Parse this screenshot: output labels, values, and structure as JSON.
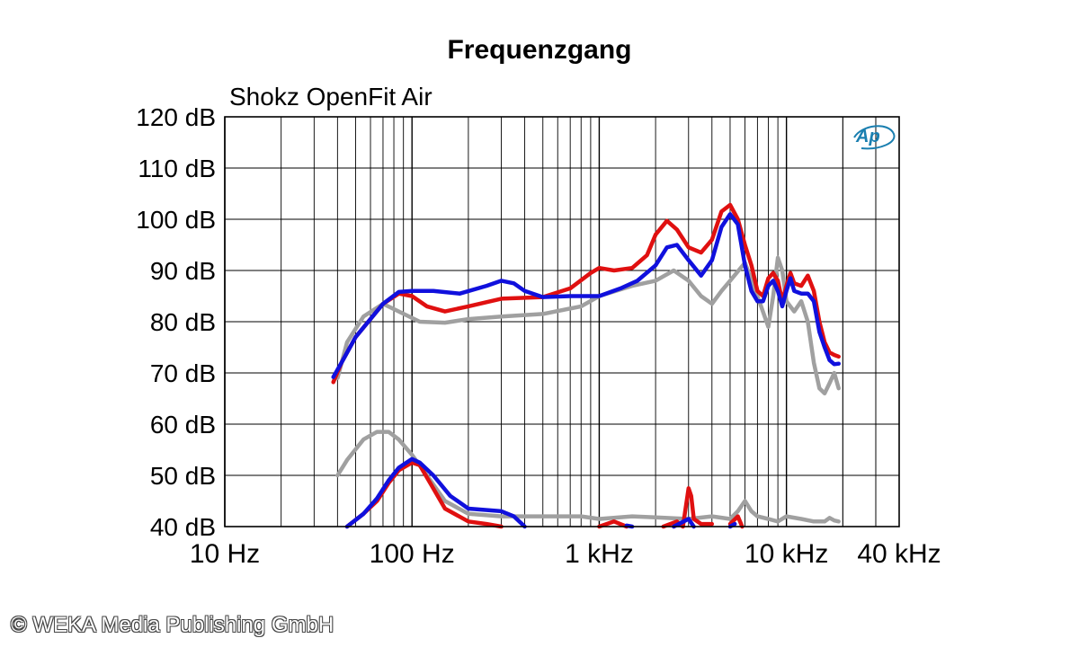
{
  "chart_data": {
    "type": "line",
    "title": "Frequenzgang",
    "subtitle": "Shokz OpenFit Air",
    "x_scale": "log",
    "xlim_hz": [
      10,
      40000
    ],
    "ylim": [
      40,
      120
    ],
    "y_ticks": [
      "120 dB",
      "110 dB",
      "100 dB",
      "90 dB",
      "80 dB",
      "70 dB",
      "60 dB",
      "50 dB",
      "40 dB"
    ],
    "x_ticks": [
      {
        "value": 10,
        "label": "10 Hz"
      },
      {
        "value": 100,
        "label": "100 Hz"
      },
      {
        "value": 1000,
        "label": "1 kHz"
      },
      {
        "value": 10000,
        "label": "10 kHz"
      },
      {
        "value": 40000,
        "label": "40 kHz"
      }
    ],
    "grid": true,
    "logo": "Ap",
    "series": [
      {
        "color": "#a0a0a0",
        "points": [
          [
            40,
            69
          ],
          [
            45,
            76
          ],
          [
            55,
            81
          ],
          [
            70,
            83.5
          ],
          [
            85,
            82
          ],
          [
            110,
            80
          ],
          [
            150,
            79.8
          ],
          [
            200,
            80.5
          ],
          [
            300,
            81
          ],
          [
            500,
            81.5
          ],
          [
            800,
            83
          ],
          [
            1000,
            85
          ],
          [
            1500,
            87
          ],
          [
            2000,
            88
          ],
          [
            2500,
            90
          ],
          [
            3000,
            88
          ],
          [
            3500,
            85
          ],
          [
            4000,
            83.5
          ],
          [
            4500,
            86
          ],
          [
            5000,
            88
          ],
          [
            6000,
            91.5
          ],
          [
            7000,
            85
          ],
          [
            8000,
            79
          ],
          [
            8500,
            85
          ],
          [
            9000,
            92.5
          ],
          [
            9500,
            90
          ],
          [
            10000,
            84
          ],
          [
            11000,
            82
          ],
          [
            12000,
            84
          ],
          [
            13000,
            80
          ],
          [
            14000,
            72
          ],
          [
            15000,
            67
          ],
          [
            16000,
            66
          ],
          [
            17000,
            68
          ],
          [
            18000,
            70
          ],
          [
            19000,
            67
          ]
        ]
      },
      {
        "color": "#e01010",
        "points": [
          [
            38,
            68.2
          ],
          [
            42,
            72
          ],
          [
            50,
            77
          ],
          [
            60,
            80.5
          ],
          [
            70,
            83.5
          ],
          [
            85,
            85.5
          ],
          [
            100,
            85
          ],
          [
            120,
            83
          ],
          [
            150,
            82
          ],
          [
            200,
            83
          ],
          [
            300,
            84.5
          ],
          [
            500,
            84.8
          ],
          [
            700,
            86.5
          ],
          [
            900,
            89.5
          ],
          [
            1000,
            90.5
          ],
          [
            1200,
            90
          ],
          [
            1500,
            90.5
          ],
          [
            1800,
            93
          ],
          [
            2000,
            97
          ],
          [
            2300,
            99.7
          ],
          [
            2600,
            98
          ],
          [
            3000,
            94.5
          ],
          [
            3500,
            93.5
          ],
          [
            4000,
            96
          ],
          [
            4500,
            101.5
          ],
          [
            5000,
            102.8
          ],
          [
            5500,
            100
          ],
          [
            6000,
            95
          ],
          [
            6500,
            91
          ],
          [
            7000,
            86
          ],
          [
            7500,
            85
          ],
          [
            8000,
            88.5
          ],
          [
            8500,
            89.5
          ],
          [
            9000,
            88
          ],
          [
            9500,
            84
          ],
          [
            10000,
            87
          ],
          [
            10500,
            89.5
          ],
          [
            11000,
            87.5
          ],
          [
            12000,
            87
          ],
          [
            13000,
            89
          ],
          [
            14000,
            86
          ],
          [
            15000,
            80
          ],
          [
            16000,
            76
          ],
          [
            17000,
            74
          ],
          [
            18000,
            73.5
          ],
          [
            19000,
            73.2
          ]
        ]
      },
      {
        "color": "#1010dd",
        "points": [
          [
            38,
            69.2
          ],
          [
            42,
            72
          ],
          [
            50,
            77
          ],
          [
            60,
            80.5
          ],
          [
            70,
            83.5
          ],
          [
            85,
            85.8
          ],
          [
            100,
            86
          ],
          [
            130,
            86
          ],
          [
            180,
            85.5
          ],
          [
            250,
            87
          ],
          [
            300,
            88
          ],
          [
            350,
            87.5
          ],
          [
            400,
            86
          ],
          [
            500,
            84.8
          ],
          [
            700,
            85
          ],
          [
            1000,
            85
          ],
          [
            1300,
            86.5
          ],
          [
            1600,
            88
          ],
          [
            2000,
            91
          ],
          [
            2300,
            94.5
          ],
          [
            2600,
            95
          ],
          [
            3000,
            92
          ],
          [
            3500,
            89
          ],
          [
            4000,
            92
          ],
          [
            4500,
            98.5
          ],
          [
            5000,
            101
          ],
          [
            5500,
            99
          ],
          [
            6000,
            91
          ],
          [
            6500,
            86
          ],
          [
            7000,
            84
          ],
          [
            7500,
            84
          ],
          [
            8000,
            87
          ],
          [
            8500,
            88
          ],
          [
            9000,
            86
          ],
          [
            9500,
            83
          ],
          [
            10000,
            86
          ],
          [
            10500,
            88.5
          ],
          [
            11000,
            86
          ],
          [
            12000,
            85.5
          ],
          [
            13000,
            85.5
          ],
          [
            14000,
            84
          ],
          [
            15000,
            78
          ],
          [
            16000,
            75
          ],
          [
            17000,
            72.5
          ],
          [
            18000,
            71.7
          ],
          [
            19000,
            71.8
          ]
        ]
      },
      {
        "color": "#a0a0a0",
        "points": [
          [
            40,
            50
          ],
          [
            45,
            53
          ],
          [
            55,
            57
          ],
          [
            65,
            58.5
          ],
          [
            75,
            58.5
          ],
          [
            85,
            57
          ],
          [
            100,
            54
          ],
          [
            120,
            50
          ],
          [
            150,
            45
          ],
          [
            200,
            42.5
          ],
          [
            300,
            42
          ],
          [
            500,
            42
          ],
          [
            800,
            42
          ],
          [
            1000,
            41.5
          ],
          [
            1500,
            42
          ],
          [
            2000,
            41.8
          ],
          [
            3000,
            41.5
          ],
          [
            4000,
            42
          ],
          [
            5000,
            41.5
          ],
          [
            5500,
            43
          ],
          [
            6000,
            45
          ],
          [
            6500,
            43
          ],
          [
            7000,
            42
          ],
          [
            8000,
            41.5
          ],
          [
            9000,
            41
          ],
          [
            10000,
            42
          ],
          [
            12000,
            41.5
          ],
          [
            14000,
            41
          ],
          [
            16000,
            41
          ],
          [
            17000,
            41.7
          ],
          [
            18000,
            41.2
          ],
          [
            19000,
            41
          ]
        ]
      },
      {
        "color": "#e01010",
        "points": [
          [
            45,
            40
          ],
          [
            55,
            42.5
          ],
          [
            65,
            45
          ],
          [
            75,
            48.5
          ],
          [
            85,
            51
          ],
          [
            100,
            52.5
          ],
          [
            110,
            52
          ],
          [
            125,
            48.5
          ],
          [
            150,
            43.5
          ],
          [
            200,
            41
          ],
          [
            250,
            40.5
          ],
          [
            300,
            40
          ],
          [
            null,
            null
          ],
          [
            1000,
            40
          ],
          [
            1200,
            41
          ],
          [
            1400,
            40
          ],
          [
            null,
            null
          ],
          [
            2200,
            40
          ],
          [
            2600,
            41
          ],
          [
            2800,
            40
          ],
          [
            3000,
            47.5
          ],
          [
            3100,
            46
          ],
          [
            3200,
            41.5
          ],
          [
            3500,
            40.5
          ],
          [
            4000,
            40.5
          ],
          [
            null,
            null
          ],
          [
            5000,
            40.5
          ],
          [
            5500,
            42
          ],
          [
            5800,
            40
          ]
        ]
      },
      {
        "color": "#1010dd",
        "points": [
          [
            45,
            40
          ],
          [
            55,
            42.5
          ],
          [
            65,
            45.5
          ],
          [
            75,
            49
          ],
          [
            85,
            51.5
          ],
          [
            100,
            53.2
          ],
          [
            110,
            52.5
          ],
          [
            130,
            50
          ],
          [
            160,
            46
          ],
          [
            200,
            43.5
          ],
          [
            300,
            43
          ],
          [
            350,
            42
          ],
          [
            400,
            40
          ],
          [
            null,
            null
          ],
          [
            1400,
            40.2
          ],
          [
            1500,
            40
          ],
          [
            null,
            null
          ],
          [
            2500,
            40
          ],
          [
            3000,
            41.5
          ],
          [
            3200,
            40
          ],
          [
            null,
            null
          ],
          [
            5000,
            40
          ],
          [
            5300,
            40.5
          ]
        ]
      }
    ]
  },
  "copyright": "© WEKA Media Publishing GmbH"
}
